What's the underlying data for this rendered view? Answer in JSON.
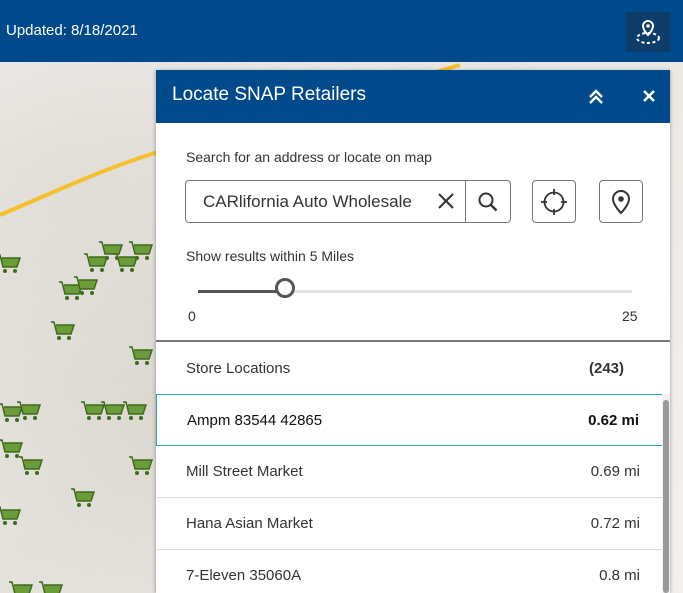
{
  "topbar": {
    "updated_text": "Updated: 8/18/2021",
    "locate_icon": "map-pin-locate-icon",
    "background": "#004a8c"
  },
  "panel": {
    "title": "Locate SNAP Retailers",
    "collapse_icon": "chevron-double-up-icon",
    "close_icon": "close-icon",
    "search": {
      "label": "Search for an address or locate on map",
      "value": "CARlifornia Auto Wholesale",
      "clear_icon": "clear-icon",
      "search_icon": "search-icon",
      "gps_icon": "crosshair-icon",
      "pin_icon": "map-pin-icon"
    },
    "radius": {
      "label": "Show results within 5 Miles",
      "min_label": "0",
      "max_label": "25",
      "value": 5,
      "min": 0,
      "max": 25
    },
    "list": {
      "title": "Store Locations",
      "count": "(243)",
      "items": [
        {
          "name": "Ampm 83544 42865",
          "distance": "0.62 mi",
          "selected": true
        },
        {
          "name": "Mill Street Market",
          "distance": "0.69 mi",
          "selected": false
        },
        {
          "name": "Hana Asian Market",
          "distance": "0.72 mi",
          "selected": false
        },
        {
          "name": "7-Eleven 35060A",
          "distance": "0.8 mi",
          "selected": false
        }
      ]
    }
  },
  "colors": {
    "header_blue": "#004a8c",
    "selected_border": "#2aa9b5",
    "road_yellow": "#f5c02c",
    "cart_green": "#6a9d3a"
  }
}
